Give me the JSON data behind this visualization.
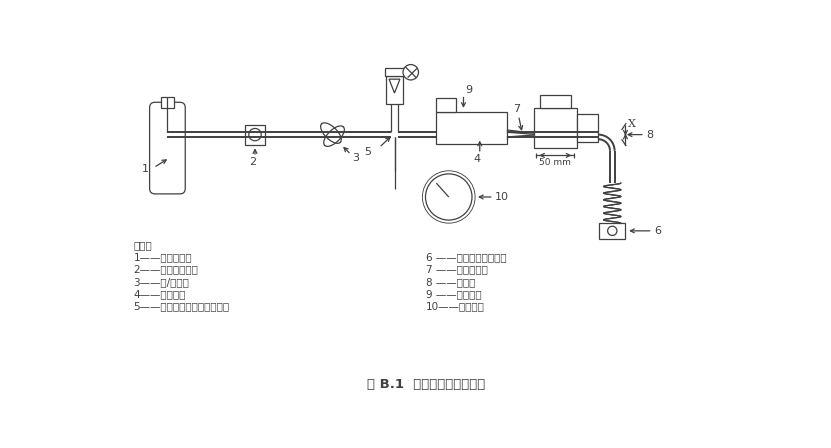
{
  "title": "图 B.1  抗扁窪性测试连接图",
  "bg_color": "#ffffff",
  "line_color": "#404040",
  "legend_title": "说明：",
  "legend_left": [
    "1——试验气体；",
    "2——压力调节器；",
    "3——开/关阀；",
    "4——试验管；",
    "5——可调空气或氧气流量计；"
  ],
  "legend_right": [
    "6 ——光滑的平行爺剪；",
    "7 ——试验接头；",
    "8 ——间距；",
    "9 ——安装块；",
    "10——压力表。"
  ]
}
